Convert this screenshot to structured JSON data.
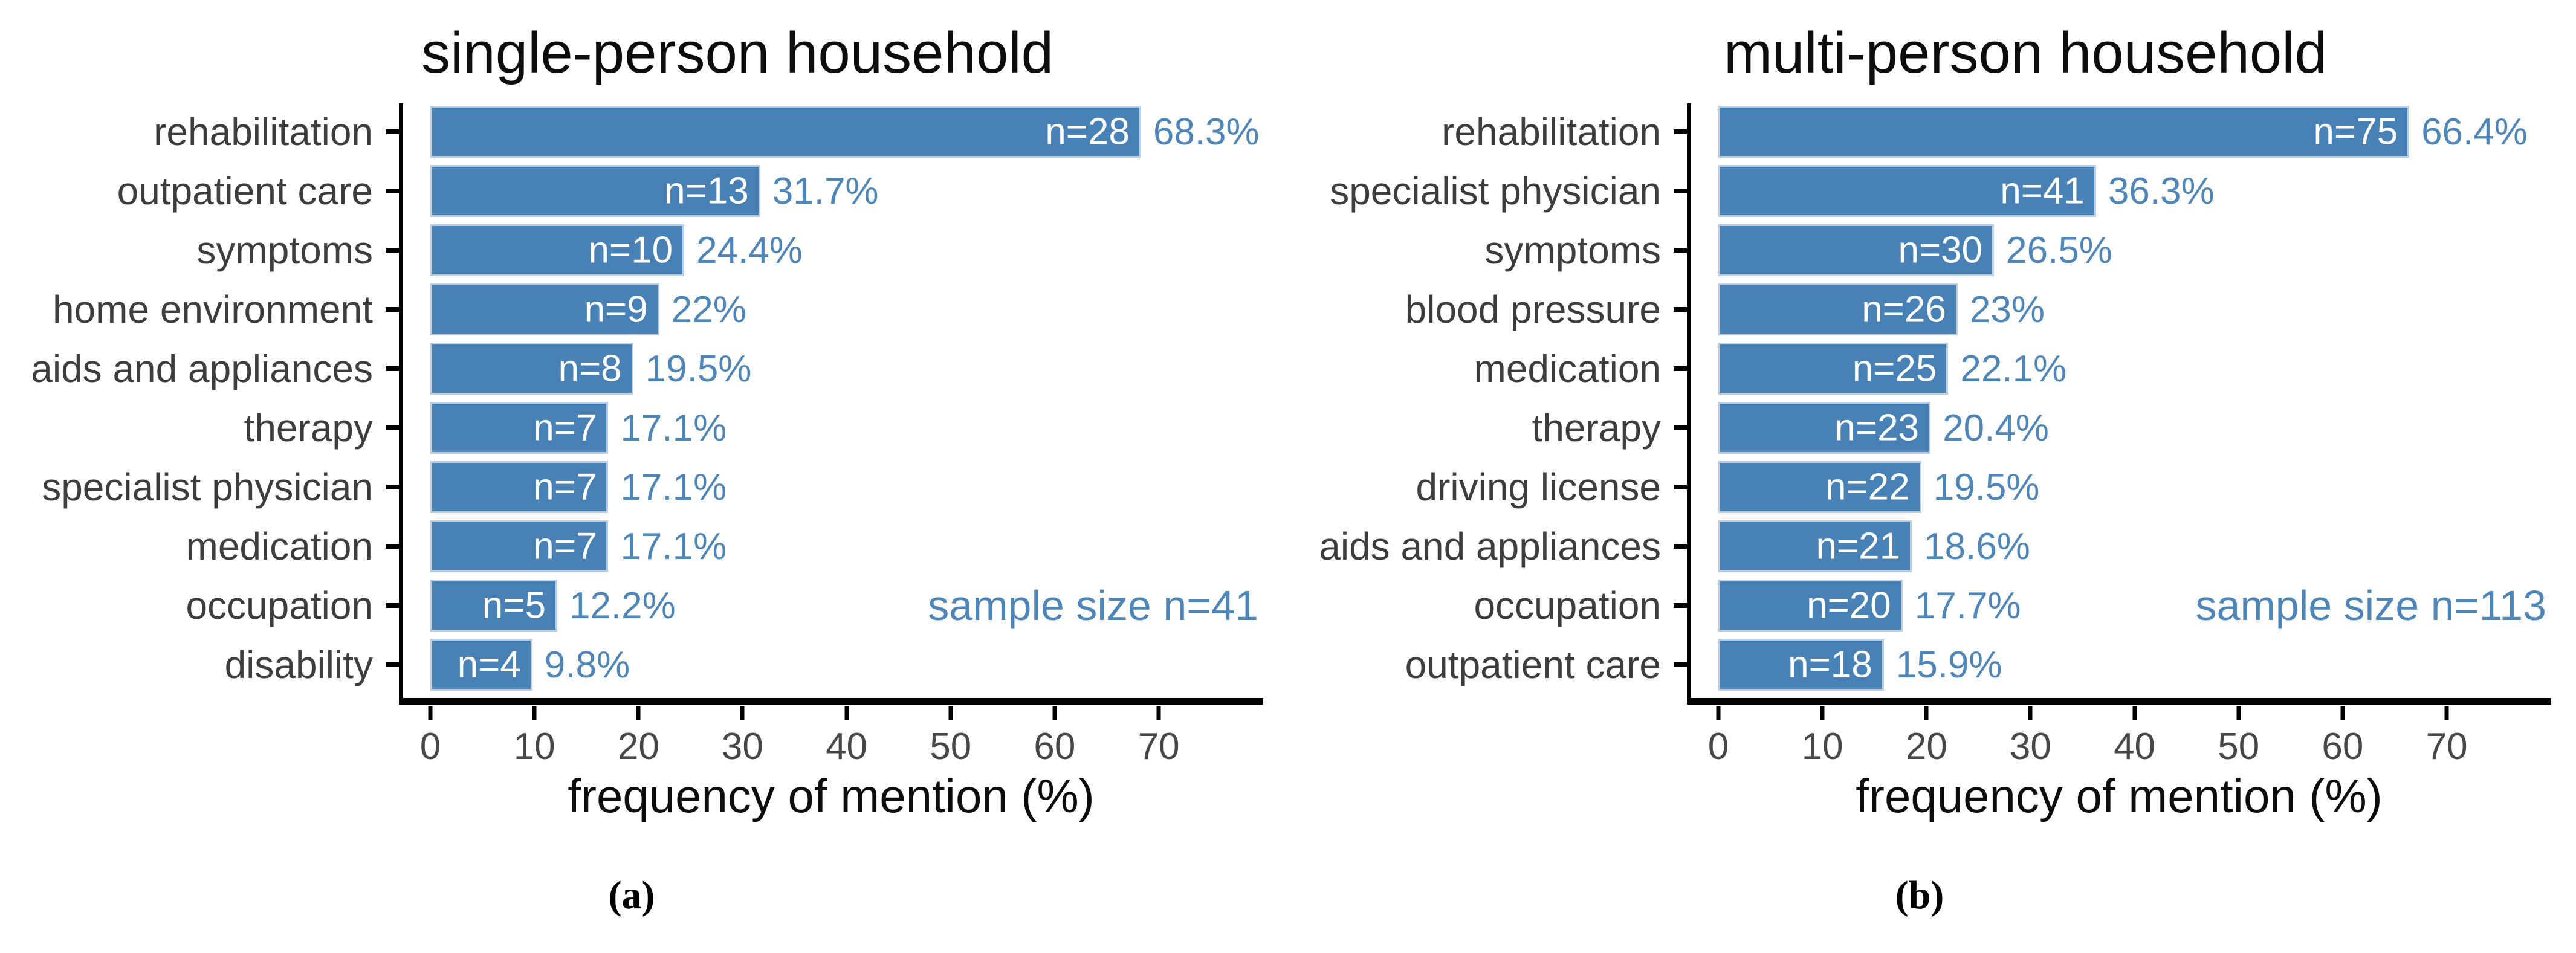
{
  "colors": {
    "bar": "#4781b6",
    "bar_edge": "#bccfe2",
    "bar_label": "#ffffff",
    "value_label": "#4f86ba",
    "category_label": "#3d3d3d",
    "tick_label": "#474747",
    "axis": "#000000"
  },
  "chart_data": [
    {
      "type": "bar",
      "orientation": "horizontal",
      "title": "single-person household",
      "xlabel": "frequency of mention (%)",
      "xlim": [
        0,
        79
      ],
      "xticks": [
        0,
        10,
        20,
        30,
        40,
        50,
        60,
        70
      ],
      "grid": false,
      "legend": null,
      "categories": [
        "rehabilitation",
        "outpatient care",
        "symptoms",
        "home environment",
        "aids and appliances",
        "therapy",
        "specialist physician",
        "medication",
        "occupation",
        "disability"
      ],
      "values": [
        68.3,
        31.7,
        24.4,
        22,
        19.5,
        17.1,
        17.1,
        17.1,
        12.2,
        9.8
      ],
      "counts": [
        28,
        13,
        10,
        9,
        8,
        7,
        7,
        7,
        5,
        4
      ],
      "bar_labels": [
        "n=28",
        "n=13",
        "n=10",
        "n=9",
        "n=8",
        "n=7",
        "n=7",
        "n=7",
        "n=5",
        "n=4"
      ],
      "value_labels": [
        "68.3%",
        "31.7%",
        "24.4%",
        "22%",
        "19.5%",
        "17.1%",
        "17.1%",
        "17.1%",
        "12.2%",
        "9.8%"
      ],
      "annotation": "sample size n=41",
      "caption": "(a)"
    },
    {
      "type": "bar",
      "orientation": "horizontal",
      "title": "multi-person household",
      "xlabel": "frequency of mention (%)",
      "xlim": [
        0,
        79
      ],
      "xticks": [
        0,
        10,
        20,
        30,
        40,
        50,
        60,
        70
      ],
      "grid": false,
      "legend": null,
      "categories": [
        "rehabilitation",
        "specialist physician",
        "symptoms",
        "blood pressure",
        "medication",
        "therapy",
        "driving license",
        "aids and appliances",
        "occupation",
        "outpatient care"
      ],
      "values": [
        66.4,
        36.3,
        26.5,
        23,
        22.1,
        20.4,
        19.5,
        18.6,
        17.7,
        15.9
      ],
      "counts": [
        75,
        41,
        30,
        26,
        25,
        23,
        22,
        21,
        20,
        18
      ],
      "bar_labels": [
        "n=75",
        "n=41",
        "n=30",
        "n=26",
        "n=25",
        "n=23",
        "n=22",
        "n=21",
        "n=20",
        "n=18"
      ],
      "value_labels": [
        "66.4%",
        "36.3%",
        "26.5%",
        "23%",
        "22.1%",
        "20.4%",
        "19.5%",
        "18.6%",
        "17.7%",
        "15.9%"
      ],
      "annotation": "sample size n=113",
      "caption": "(b)"
    }
  ]
}
